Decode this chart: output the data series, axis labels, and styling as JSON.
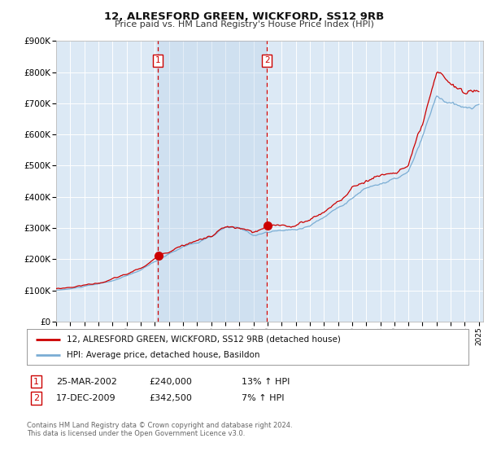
{
  "title": "12, ALRESFORD GREEN, WICKFORD, SS12 9RB",
  "subtitle": "Price paid vs. HM Land Registry's House Price Index (HPI)",
  "background_color": "#ffffff",
  "plot_bg_color": "#dce9f5",
  "plot_bg_shade": "#c5d9ef",
  "grid_color": "#ffffff",
  "ylim": [
    0,
    900000
  ],
  "yticks": [
    0,
    100000,
    200000,
    300000,
    400000,
    500000,
    600000,
    700000,
    800000,
    900000
  ],
  "ytick_labels": [
    "£0",
    "£100K",
    "£200K",
    "£300K",
    "£400K",
    "£500K",
    "£600K",
    "£700K",
    "£800K",
    "£900K"
  ],
  "xlim_start": 1995.0,
  "xlim_end": 2025.3,
  "red_line_color": "#cc0000",
  "blue_line_color": "#7aadd4",
  "vline_color": "#cc0000",
  "shade_alpha": 0.25,
  "marker1_x": 2002.23,
  "marker2_x": 2009.96,
  "transaction1_date": "25-MAR-2002",
  "transaction1_price": "£240,000",
  "transaction1_hpi": "13% ↑ HPI",
  "transaction2_date": "17-DEC-2009",
  "transaction2_price": "£342,500",
  "transaction2_hpi": "7% ↑ HPI",
  "legend_label1": "12, ALRESFORD GREEN, WICKFORD, SS12 9RB (detached house)",
  "legend_label2": "HPI: Average price, detached house, Basildon",
  "footnote": "Contains HM Land Registry data © Crown copyright and database right 2024.\nThis data is licensed under the Open Government Licence v3.0."
}
